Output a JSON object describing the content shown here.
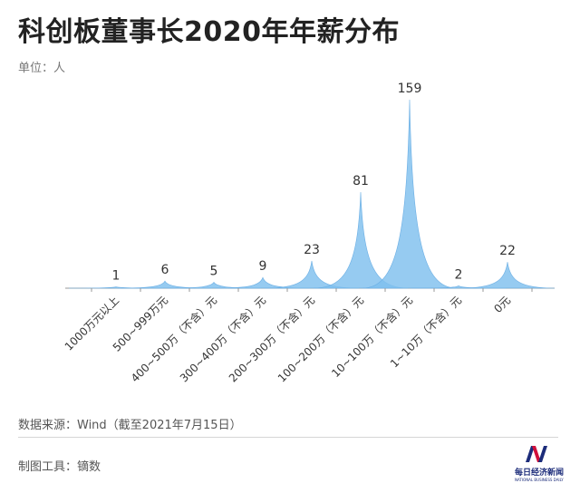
{
  "title": "科创板董事长2020年年薪分布",
  "unit_label": "单位：人",
  "source": "数据来源：Wind（截至2021年7月15日）",
  "tool": "制图工具：镝数",
  "logo": {
    "cn": "每日经济新闻",
    "en": "NATIONAL BUSINESS DAILY"
  },
  "colors": {
    "peak": "#7fbfee",
    "peak_stroke": "#6aaee4",
    "axis": "#9a9a9a",
    "label": "#333333"
  },
  "chart_data": {
    "type": "area",
    "title": "科创板董事长2020年年薪分布",
    "ylabel": "单位：人",
    "xlabel": "",
    "categories": [
      "1000万元以上",
      "500~999万元",
      "400~500万（不含）元",
      "300~400万（不含）元",
      "200~300万（不含）元",
      "100~200万（不含）元",
      "10~100万（不含）元",
      "1~10万（不含）元",
      "0元"
    ],
    "values": [
      1,
      6,
      5,
      9,
      23,
      81,
      159,
      2,
      22
    ],
    "ylim": [
      0,
      159
    ],
    "grid": false,
    "legend": "none"
  }
}
